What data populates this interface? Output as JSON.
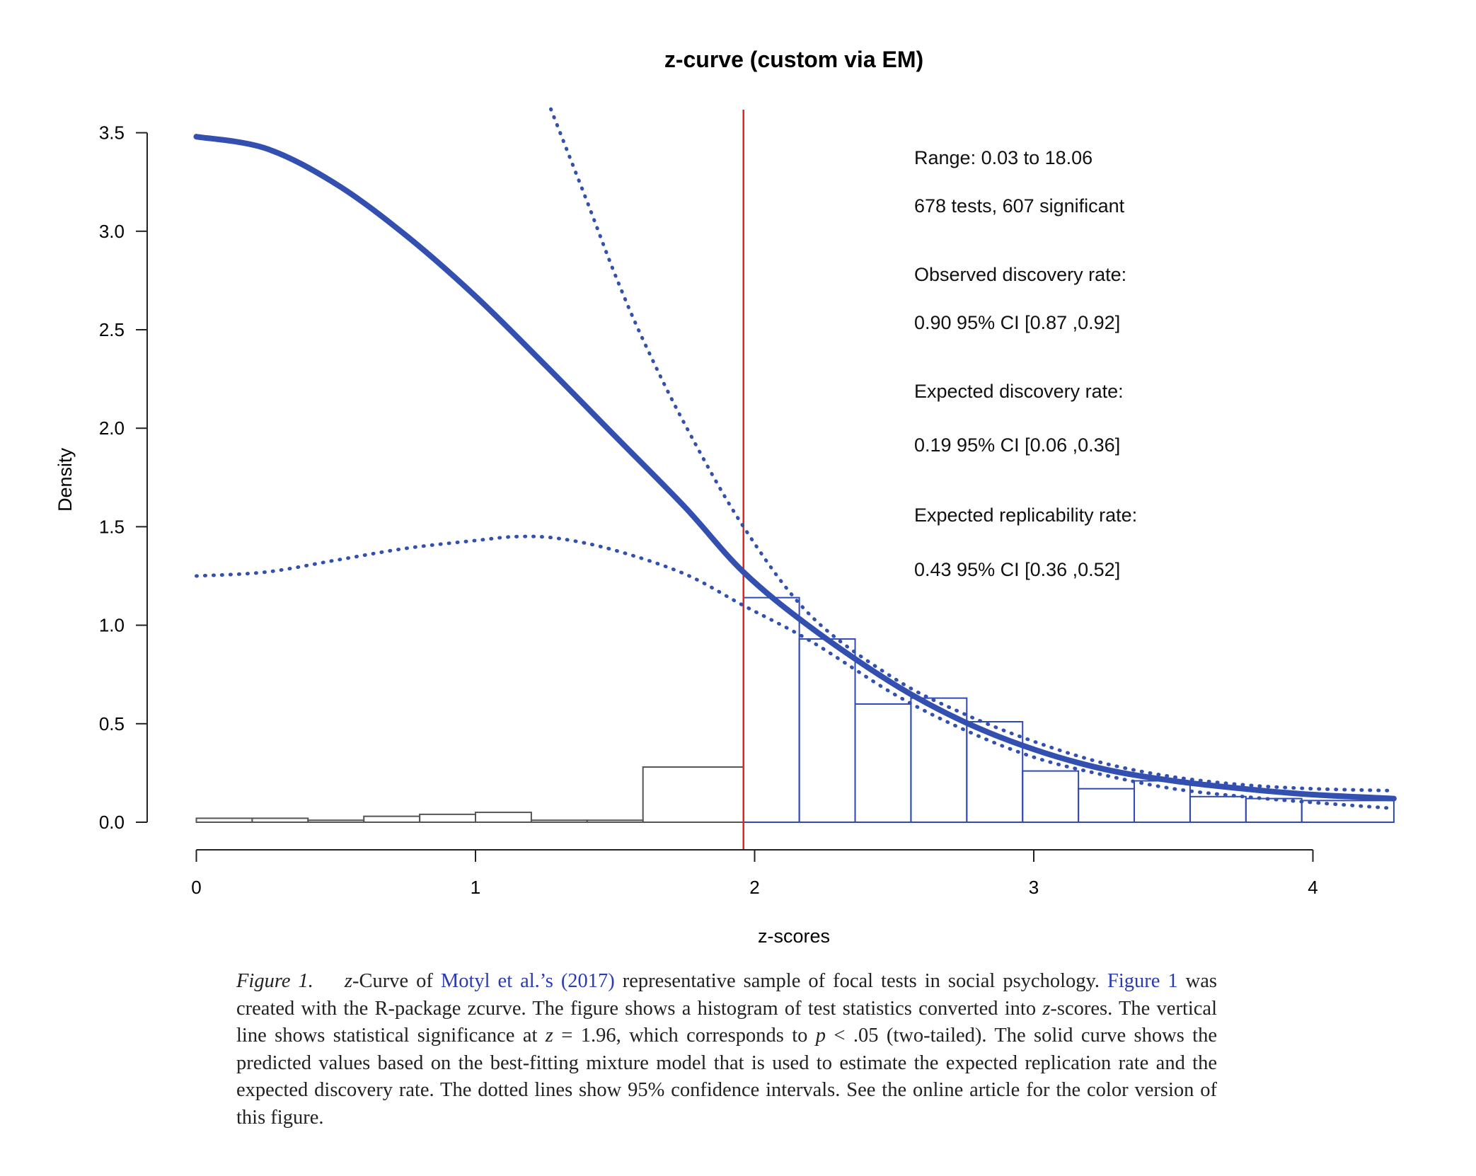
{
  "chart_data": {
    "type": "histogram with density curves",
    "title": "z-curve (custom via EM)",
    "xlabel": "z-scores",
    "ylabel": "Density",
    "xlim": [
      0,
      4.29
    ],
    "ylim": [
      0,
      3.5
    ],
    "x_ticks": [
      "0",
      "1",
      "2",
      "3",
      "4"
    ],
    "y_ticks": [
      "0.0",
      "0.5",
      "1.0",
      "1.5",
      "2.0",
      "2.5",
      "3.0",
      "3.5"
    ],
    "grid": false,
    "significance_line": {
      "x": 1.96,
      "color": "#e8231f"
    },
    "histogram_nonsignificant": {
      "color": "#555555",
      "bins": [
        [
          0,
          0.2,
          0.02
        ],
        [
          0.2,
          0.4,
          0.02
        ],
        [
          0.4,
          0.6,
          0.01
        ],
        [
          0.6,
          0.8,
          0.03
        ],
        [
          0.8,
          1.0,
          0.04
        ],
        [
          1.0,
          1.2,
          0.05
        ],
        [
          1.2,
          1.4,
          0.01
        ],
        [
          1.4,
          1.6,
          0.01
        ],
        [
          1.6,
          1.96,
          0.28
        ]
      ]
    },
    "histogram_significant": {
      "color": "#2f49b5",
      "bins": [
        [
          1.96,
          2.16,
          1.14
        ],
        [
          2.16,
          2.36,
          0.93
        ],
        [
          2.36,
          2.56,
          0.6
        ],
        [
          2.56,
          2.76,
          0.63
        ],
        [
          2.76,
          2.96,
          0.51
        ],
        [
          2.96,
          3.16,
          0.26
        ],
        [
          3.16,
          3.36,
          0.17
        ],
        [
          3.36,
          3.56,
          0.21
        ],
        [
          3.56,
          3.76,
          0.13
        ],
        [
          3.76,
          3.96,
          0.12
        ],
        [
          3.96,
          4.29,
          0.11
        ]
      ]
    },
    "series": [
      {
        "style": "solid",
        "color": "#3350b0",
        "x": [
          0,
          0.25,
          0.5,
          0.75,
          1.0,
          1.25,
          1.5,
          1.75,
          1.96,
          2.2,
          2.5,
          2.75,
          3.0,
          3.25,
          3.5,
          3.75,
          4.0,
          4.29
        ],
        "y": [
          3.48,
          3.42,
          3.24,
          2.98,
          2.67,
          2.32,
          1.96,
          1.6,
          1.27,
          0.99,
          0.7,
          0.51,
          0.37,
          0.27,
          0.21,
          0.17,
          0.14,
          0.12
        ]
      },
      {
        "style": "dotted",
        "color": "#3350b0",
        "x": [
          1.27,
          1.4,
          1.5,
          1.6,
          1.75,
          1.96,
          2.2,
          2.5,
          2.75,
          3.0,
          3.25,
          3.5,
          3.75,
          4.0,
          4.29
        ],
        "y": [
          3.62,
          3.15,
          2.78,
          2.45,
          2.02,
          1.5,
          1.05,
          0.73,
          0.55,
          0.41,
          0.3,
          0.23,
          0.19,
          0.17,
          0.16
        ]
      },
      {
        "style": "dotted",
        "color": "#3350b0",
        "x": [
          0,
          0.25,
          0.5,
          0.75,
          1.0,
          1.15,
          1.3,
          1.5,
          1.75,
          1.96,
          2.2,
          2.5,
          2.75,
          3.0,
          3.25,
          3.5,
          3.75,
          4.0,
          4.29
        ],
        "y": [
          1.25,
          1.27,
          1.33,
          1.39,
          1.43,
          1.45,
          1.44,
          1.38,
          1.26,
          1.1,
          0.92,
          0.65,
          0.47,
          0.33,
          0.24,
          0.17,
          0.13,
          0.1,
          0.07
        ]
      }
    ],
    "annotations": [
      "Range: 0.03 to 18.06",
      "678 tests, 607 significant",
      "Observed discovery rate:",
      "0.90  95% CI [0.87 ,0.92]",
      "Expected discovery rate:",
      "0.19  95% CI [0.06 ,0.36]",
      "Expected replicability rate:",
      "0.43  95% CI [0.36 ,0.52]"
    ]
  },
  "caption": {
    "label": "Figure 1.",
    "z1": "z",
    "t1": "-Curve of ",
    "link1": "Motyl et al.’s (2017)",
    "t2": " representative sample of focal tests in social psychology. ",
    "link2": "Figure 1",
    "t3": " was created with the R-package zcurve. The figure shows a histogram of test statistics converted into ",
    "z2": "z",
    "t4": "-scores. The vertical line shows statistical significance at ",
    "z3": "z",
    "t5": " = 1.96, which corresponds to ",
    "p": "p",
    "t6": " < .05 (two-tailed). The solid curve shows the predicted values based on the best-fitting mixture model that is used to estimate the expected replication rate and the expected discovery rate. The dotted lines show 95% confidence intervals. See the online article for the color version of this figure."
  }
}
